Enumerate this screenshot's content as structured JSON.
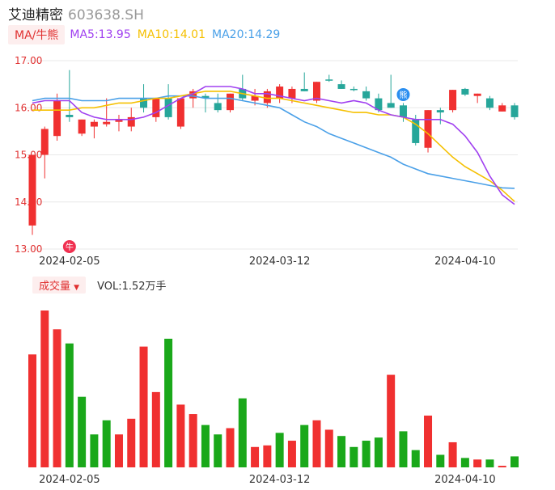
{
  "header": {
    "name": "艾迪精密",
    "code": "603638.SH"
  },
  "ma_legend": {
    "label": "MA/牛熊",
    "ma5": "MA5:13.95",
    "ma10": "MA10:14.01",
    "ma20": "MA20:14.29"
  },
  "volume_legend": {
    "label": "成交量",
    "value": "VOL:1.52万手"
  },
  "colors": {
    "up": "#f03030",
    "down_price": "#26a69a",
    "down_volume": "#1aa81a",
    "ma5": "#a040f0",
    "ma10": "#f5c000",
    "ma20": "#4aa0e8",
    "grid": "#e8e8e8",
    "tick": "#e03030"
  },
  "markers": [
    {
      "label": "牛",
      "icon": "bull-icon"
    },
    {
      "label": "熊",
      "icon": "bear-icon"
    }
  ],
  "chart_data": [
    {
      "type": "candlestick",
      "y_ticks": [
        "17.00",
        "16.00",
        "15.00",
        "14.00",
        "13.00"
      ],
      "ylim": [
        13.0,
        17.0
      ],
      "x_tick_labels": [
        "2024-02-05",
        "2024-03-12",
        "2024-04-10"
      ],
      "candles": [
        {
          "o": 13.5,
          "h": 15.0,
          "l": 13.3,
          "c": 15.0
        },
        {
          "o": 15.0,
          "h": 15.6,
          "l": 14.5,
          "c": 15.55
        },
        {
          "o": 15.4,
          "h": 16.3,
          "l": 15.3,
          "c": 16.15
        },
        {
          "o": 15.85,
          "h": 16.8,
          "l": 15.7,
          "c": 15.8
        },
        {
          "o": 15.45,
          "h": 15.75,
          "l": 15.4,
          "c": 15.75
        },
        {
          "o": 15.6,
          "h": 15.75,
          "l": 15.35,
          "c": 15.7
        },
        {
          "o": 15.65,
          "h": 16.2,
          "l": 15.6,
          "c": 15.7
        },
        {
          "o": 15.7,
          "h": 15.85,
          "l": 15.5,
          "c": 15.75
        },
        {
          "o": 15.6,
          "h": 16.0,
          "l": 15.5,
          "c": 15.8
        },
        {
          "o": 16.2,
          "h": 16.5,
          "l": 15.9,
          "c": 16.0
        },
        {
          "o": 15.8,
          "h": 16.2,
          "l": 15.7,
          "c": 16.2
        },
        {
          "o": 16.2,
          "h": 16.5,
          "l": 15.75,
          "c": 15.8
        },
        {
          "o": 15.6,
          "h": 16.2,
          "l": 15.55,
          "c": 16.2
        },
        {
          "o": 16.2,
          "h": 16.4,
          "l": 16.0,
          "c": 16.35
        },
        {
          "o": 16.25,
          "h": 16.3,
          "l": 15.9,
          "c": 16.2
        },
        {
          "o": 16.1,
          "h": 16.3,
          "l": 15.9,
          "c": 15.95
        },
        {
          "o": 15.95,
          "h": 16.3,
          "l": 15.9,
          "c": 16.3
        },
        {
          "o": 16.4,
          "h": 16.7,
          "l": 16.15,
          "c": 16.2
        },
        {
          "o": 16.15,
          "h": 16.4,
          "l": 16.05,
          "c": 16.25
        },
        {
          "o": 16.1,
          "h": 16.4,
          "l": 16.0,
          "c": 16.35
        },
        {
          "o": 16.2,
          "h": 16.5,
          "l": 16.1,
          "c": 16.45
        },
        {
          "o": 16.2,
          "h": 16.45,
          "l": 16.1,
          "c": 16.4
        },
        {
          "o": 16.4,
          "h": 16.75,
          "l": 16.35,
          "c": 16.35
        },
        {
          "o": 16.15,
          "h": 16.55,
          "l": 16.1,
          "c": 16.55
        },
        {
          "o": 16.6,
          "h": 16.7,
          "l": 16.55,
          "c": 16.58
        },
        {
          "o": 16.5,
          "h": 16.58,
          "l": 16.4,
          "c": 16.4
        },
        {
          "o": 16.4,
          "h": 16.45,
          "l": 16.35,
          "c": 16.38
        },
        {
          "o": 16.35,
          "h": 16.45,
          "l": 16.15,
          "c": 16.2
        },
        {
          "o": 16.2,
          "h": 16.3,
          "l": 15.9,
          "c": 15.95
        },
        {
          "o": 16.1,
          "h": 16.7,
          "l": 16.0,
          "c": 16.0
        },
        {
          "o": 16.05,
          "h": 16.1,
          "l": 15.7,
          "c": 15.8
        },
        {
          "o": 15.75,
          "h": 15.85,
          "l": 15.2,
          "c": 15.25
        },
        {
          "o": 15.15,
          "h": 15.95,
          "l": 15.05,
          "c": 15.95
        },
        {
          "o": 15.95,
          "h": 16.0,
          "l": 15.65,
          "c": 15.9
        },
        {
          "o": 15.95,
          "h": 16.38,
          "l": 15.9,
          "c": 16.38
        },
        {
          "o": 16.4,
          "h": 16.42,
          "l": 16.25,
          "c": 16.28
        },
        {
          "o": 16.25,
          "h": 16.3,
          "l": 16.1,
          "c": 16.3
        },
        {
          "o": 16.2,
          "h": 16.25,
          "l": 15.95,
          "c": 16.0
        },
        {
          "o": 15.92,
          "h": 16.1,
          "l": 15.92,
          "c": 16.05
        },
        {
          "o": 16.05,
          "h": 16.1,
          "l": 15.75,
          "c": 15.8
        }
      ],
      "ma5": [
        16.1,
        16.15,
        16.15,
        16.15,
        15.9,
        15.8,
        15.75,
        15.75,
        15.75,
        15.8,
        15.9,
        16.05,
        16.2,
        16.3,
        16.45,
        16.45,
        16.45,
        16.4,
        16.3,
        16.3,
        16.25,
        16.2,
        16.15,
        16.2,
        16.15,
        16.1,
        16.15,
        16.1,
        15.95,
        15.85,
        15.8,
        15.75,
        15.75,
        15.75,
        15.65,
        15.4,
        15.05,
        14.55,
        14.15,
        13.95
      ],
      "ma10": [
        15.95,
        15.95,
        15.95,
        15.95,
        16.0,
        16.0,
        16.05,
        16.1,
        16.1,
        16.15,
        16.2,
        16.2,
        16.25,
        16.3,
        16.35,
        16.35,
        16.35,
        16.3,
        16.25,
        16.2,
        16.2,
        16.15,
        16.1,
        16.05,
        16.0,
        15.95,
        15.9,
        15.9,
        15.85,
        15.85,
        15.8,
        15.65,
        15.45,
        15.2,
        14.95,
        14.75,
        14.6,
        14.45,
        14.25,
        14.01
      ],
      "ma20": [
        16.15,
        16.2,
        16.2,
        16.2,
        16.15,
        16.15,
        16.15,
        16.2,
        16.2,
        16.2,
        16.2,
        16.25,
        16.25,
        16.25,
        16.2,
        16.2,
        16.2,
        16.15,
        16.1,
        16.05,
        16.0,
        15.85,
        15.7,
        15.6,
        15.45,
        15.35,
        15.25,
        15.15,
        15.05,
        14.95,
        14.8,
        14.7,
        14.6,
        14.55,
        14.5,
        14.45,
        14.4,
        14.35,
        14.3,
        14.29
      ]
    },
    {
      "type": "bar",
      "name": "成交量",
      "x_tick_labels": [
        "2024-02-05",
        "2024-03-12",
        "2024-04-10"
      ],
      "volume_max": 100,
      "volumes": [
        72,
        100,
        88,
        79,
        45,
        21,
        30,
        21,
        31,
        77,
        48,
        82,
        40,
        34,
        27,
        21,
        25,
        44,
        13,
        14,
        22,
        17,
        27,
        30,
        24,
        20,
        13,
        17,
        19,
        59,
        23,
        11,
        33,
        8,
        16,
        6,
        5,
        5,
        1,
        7
      ],
      "up": [
        true,
        true,
        true,
        false,
        false,
        false,
        false,
        true,
        true,
        true,
        true,
        false,
        true,
        true,
        false,
        false,
        true,
        false,
        true,
        true,
        false,
        true,
        false,
        true,
        true,
        false,
        false,
        false,
        false,
        true,
        false,
        false,
        true,
        false,
        true,
        false,
        true,
        false,
        true,
        false
      ]
    }
  ]
}
